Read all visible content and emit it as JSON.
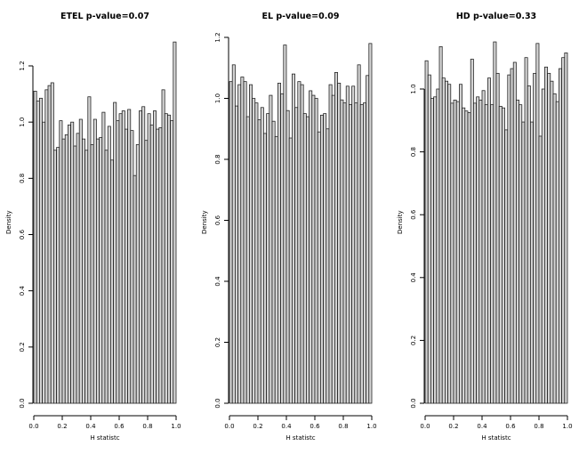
{
  "figure_title": "",
  "colors": {
    "background": "#ffffff",
    "bar_fill": "#d4d4d4",
    "bar_stroke": "#1a1a1a",
    "axis": "#000000",
    "text": "#000000"
  },
  "chart_data": [
    {
      "type": "bar",
      "subtype": "histogram",
      "title": "ETEL p-value=0.07",
      "xlabel": "H statistc",
      "ylabel": "Density",
      "bin_start": 0.0,
      "bin_width": 0.02,
      "x_ticks": [
        0.0,
        0.2,
        0.4,
        0.6,
        0.8,
        1.0
      ],
      "y_ticks": [
        0.0,
        0.2,
        0.4,
        0.6,
        0.8,
        1.0,
        1.2
      ],
      "xlim": [
        0.0,
        1.0
      ],
      "ylim": [
        0.0,
        1.29
      ],
      "grid": false,
      "values": [
        1.11,
        1.075,
        1.085,
        1.0,
        1.115,
        1.13,
        1.14,
        0.9,
        0.91,
        1.005,
        0.94,
        0.955,
        0.99,
        1.0,
        0.915,
        0.96,
        1.01,
        0.94,
        0.9,
        1.09,
        0.92,
        1.01,
        0.94,
        0.945,
        1.035,
        0.9,
        0.985,
        0.865,
        1.07,
        1.005,
        1.03,
        1.04,
        0.975,
        1.045,
        0.97,
        0.81,
        0.92,
        1.04,
        1.055,
        0.935,
        1.03,
        0.99,
        1.04,
        0.975,
        0.98,
        1.115,
        1.03,
        1.025,
        1.005,
        1.285
      ]
    },
    {
      "type": "bar",
      "subtype": "histogram",
      "title": "EL p-value=0.09",
      "xlabel": "H statistc",
      "ylabel": "Density",
      "bin_start": 0.0,
      "bin_width": 0.02,
      "x_ticks": [
        0.0,
        0.2,
        0.4,
        0.6,
        0.8,
        1.0
      ],
      "y_ticks": [
        0.0,
        0.2,
        0.4,
        0.6,
        0.8,
        1.0,
        1.2
      ],
      "xlim": [
        0.0,
        1.0
      ],
      "ylim": [
        0.0,
        1.18
      ],
      "grid": false,
      "values": [
        1.055,
        1.11,
        0.975,
        1.045,
        1.07,
        1.055,
        0.94,
        1.045,
        1.0,
        0.985,
        0.93,
        0.97,
        0.885,
        0.95,
        1.01,
        0.925,
        0.875,
        1.05,
        1.015,
        1.175,
        0.96,
        0.87,
        1.08,
        0.97,
        1.055,
        1.045,
        0.95,
        0.94,
        1.025,
        1.01,
        1.0,
        0.89,
        0.945,
        0.95,
        0.9,
        1.045,
        1.01,
        1.085,
        1.05,
        0.995,
        0.985,
        1.04,
        0.98,
        1.04,
        0.985,
        1.11,
        0.98,
        0.985,
        1.075,
        1.18
      ]
    },
    {
      "type": "bar",
      "subtype": "histogram",
      "title": "HD p-value=0.33",
      "xlabel": "H statistc",
      "ylabel": "Density",
      "bin_start": 0.0,
      "bin_width": 0.02,
      "x_ticks": [
        0.0,
        0.2,
        0.4,
        0.6,
        0.8,
        1.0
      ],
      "y_ticks": [
        0.0,
        0.2,
        0.4,
        0.6,
        0.8,
        1.0
      ],
      "xlim": [
        0.0,
        1.0
      ],
      "ylim": [
        0.0,
        1.15
      ],
      "grid": false,
      "values": [
        1.09,
        1.045,
        0.97,
        0.975,
        1.0,
        1.135,
        1.035,
        1.025,
        1.015,
        0.955,
        0.965,
        0.96,
        1.015,
        0.94,
        0.93,
        0.925,
        1.095,
        0.955,
        0.975,
        0.965,
        0.995,
        0.95,
        1.035,
        0.95,
        1.15,
        1.05,
        0.945,
        0.94,
        0.87,
        1.045,
        1.065,
        1.085,
        0.965,
        0.95,
        0.895,
        1.1,
        1.01,
        0.895,
        1.05,
        1.145,
        0.85,
        1.0,
        1.07,
        1.05,
        1.025,
        0.985,
        0.96,
        1.065,
        1.1,
        1.115
      ]
    }
  ]
}
